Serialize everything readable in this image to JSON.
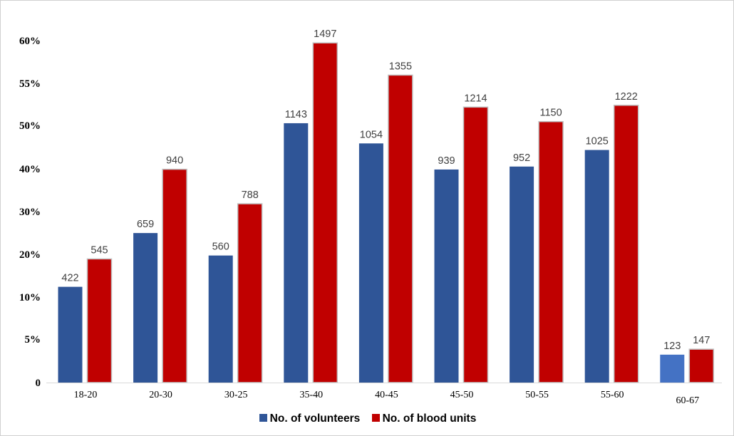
{
  "chart_data": {
    "type": "bar",
    "title": "",
    "xlabel": "",
    "ylabel": "",
    "y_tick_labels": [
      "0",
      "5%",
      "10%",
      "20%",
      "30%",
      "40%",
      "50%",
      "55%",
      "60%"
    ],
    "categories": [
      "18-20",
      "20-30",
      "30-25",
      "35-40",
      "40-45",
      "45-50",
      "50-55",
      "55-60",
      "60-67"
    ],
    "series": [
      {
        "name": "No. of volunteers",
        "color": "#2f5597",
        "values": [
          422,
          659,
          560,
          1143,
          1054,
          939,
          952,
          1025,
          123
        ],
        "labels": [
          "422",
          "659",
          "560",
          "1143",
          "1054",
          "939",
          "952",
          "1025",
          "123"
        ],
        "last_bar_color": "#4472c4"
      },
      {
        "name": "No. of blood units",
        "color": "#c00000",
        "values": [
          545,
          940,
          788,
          1497,
          1355,
          1214,
          1150,
          1222,
          147
        ],
        "labels": [
          "545",
          "940",
          "788",
          "1497",
          "1355",
          "1214",
          "1150",
          "1222",
          "147"
        ]
      }
    ],
    "grid": false,
    "legend_position": "bottom"
  }
}
